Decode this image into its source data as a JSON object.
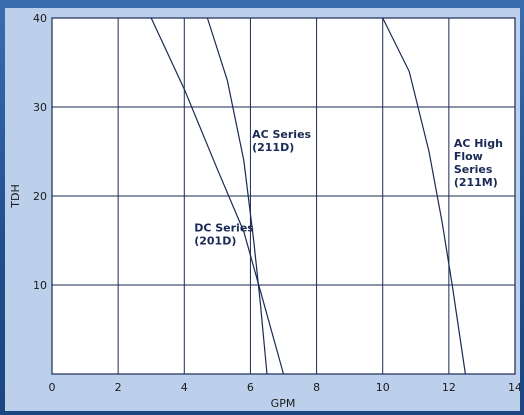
{
  "chart_data": {
    "type": "line",
    "xlabel": "GPM",
    "ylabel": "TDH",
    "xlim": [
      0,
      14
    ],
    "ylim": [
      0,
      40
    ],
    "x_ticks": [
      "0",
      "2",
      "4",
      "6",
      "8",
      "10",
      "12",
      "14"
    ],
    "y_ticks": [
      "10",
      "20",
      "30",
      "40"
    ],
    "grid": true,
    "series": [
      {
        "name": "DC Series (201D)",
        "label_lines": [
          "DC Series",
          "(201D)"
        ],
        "points": [
          [
            3.0,
            40
          ],
          [
            4.0,
            32
          ],
          [
            5.0,
            23
          ],
          [
            5.8,
            16
          ],
          [
            6.4,
            8
          ],
          [
            7.0,
            0
          ]
        ]
      },
      {
        "name": "AC Series (211D)",
        "label_lines": [
          "AC Series",
          "(211D)"
        ],
        "points": [
          [
            4.7,
            40
          ],
          [
            5.3,
            33
          ],
          [
            5.8,
            24
          ],
          [
            6.1,
            15
          ],
          [
            6.3,
            8
          ],
          [
            6.5,
            0
          ]
        ]
      },
      {
        "name": "AC High Flow Series (211M)",
        "label_lines": [
          "AC High",
          "Flow",
          "Series",
          "(211M)"
        ],
        "points": [
          [
            10.0,
            40
          ],
          [
            10.8,
            34
          ],
          [
            11.4,
            25
          ],
          [
            11.8,
            17
          ],
          [
            12.1,
            10
          ],
          [
            12.3,
            5
          ],
          [
            12.5,
            0
          ]
        ]
      }
    ]
  }
}
